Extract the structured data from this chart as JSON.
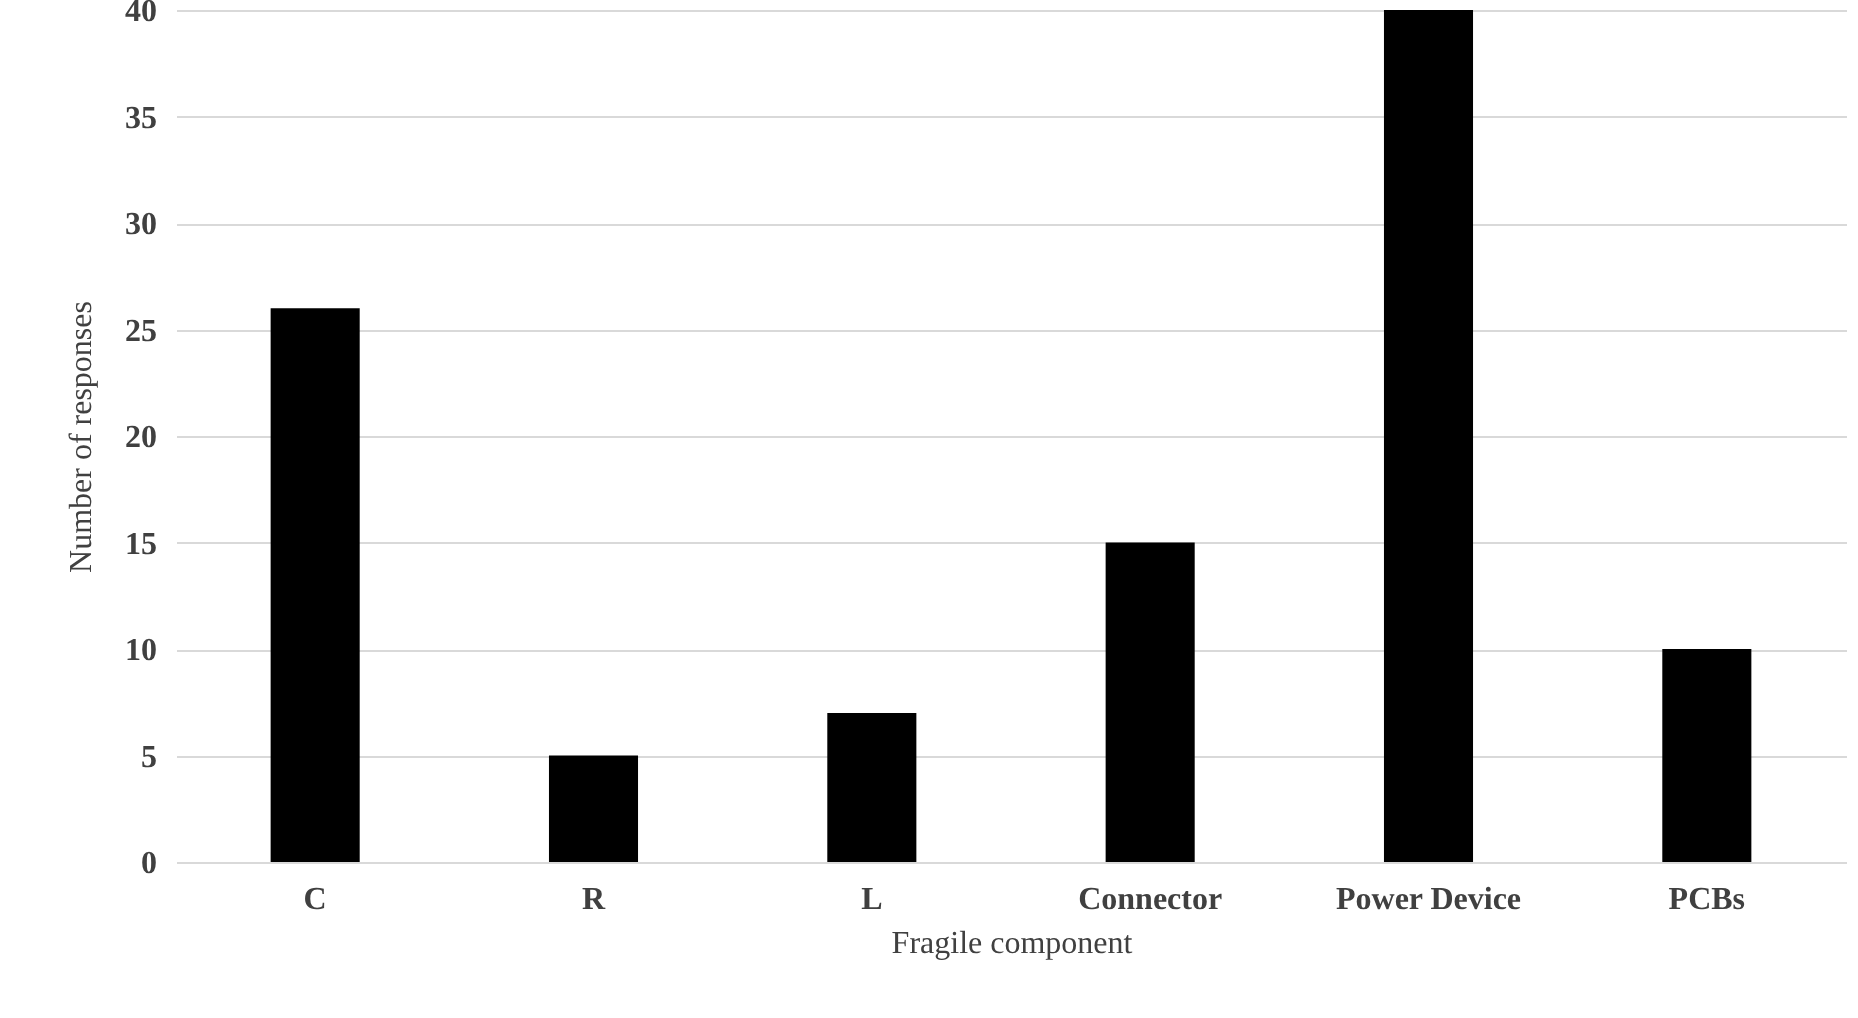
{
  "chart_data": {
    "type": "bar",
    "xlabel": "Fragile component",
    "ylabel": "Number of responses",
    "categories": [
      "C",
      "R",
      "L",
      "Connector",
      "Power Device",
      "PCBs"
    ],
    "values": [
      26,
      5,
      7,
      15,
      40,
      10
    ],
    "color": "#000000",
    "ylim": [
      0,
      40
    ],
    "yticks": [
      0,
      5,
      10,
      15,
      20,
      25,
      30,
      35,
      40
    ],
    "grid": "y"
  }
}
